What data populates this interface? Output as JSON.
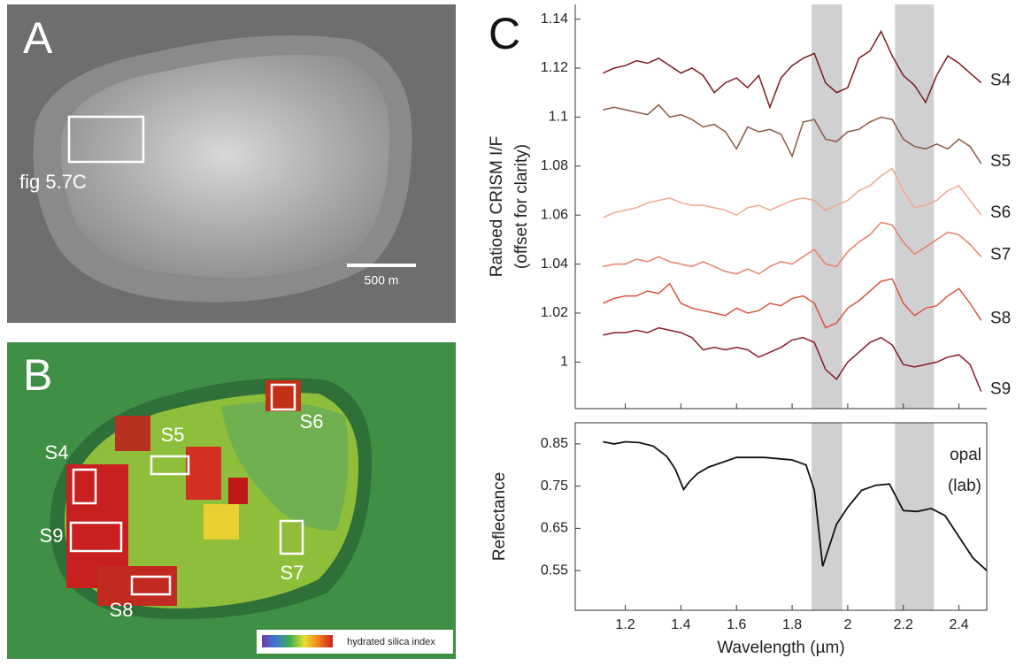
{
  "panels": {
    "a": {
      "label": "A",
      "box_label": "fig 5.7C",
      "scale_label": "500 m"
    },
    "b": {
      "label": "B",
      "sites": [
        "S4",
        "S5",
        "S6",
        "S7",
        "S8",
        "S9"
      ],
      "colorbar_label": "hydrated silica index"
    },
    "c": {
      "label": "C"
    }
  },
  "chart_data": [
    {
      "type": "line",
      "ylabel": [
        "Ratioed CRISM I/F",
        "(offset for clarity)"
      ],
      "xlim": [
        1.02,
        2.5
      ],
      "ylim": [
        0.981,
        1.146
      ],
      "xticks": [
        1.2,
        1.4,
        1.6,
        1.8,
        2,
        2.2,
        2.4
      ],
      "yticks": [
        1,
        1.02,
        1.04,
        1.06,
        1.08,
        1.1,
        1.12,
        1.14
      ],
      "shaded_ranges": [
        [
          1.87,
          1.98
        ],
        [
          2.17,
          2.31
        ]
      ],
      "x": [
        1.12,
        1.16,
        1.2,
        1.24,
        1.28,
        1.32,
        1.36,
        1.4,
        1.44,
        1.48,
        1.52,
        1.56,
        1.6,
        1.64,
        1.68,
        1.72,
        1.76,
        1.8,
        1.84,
        1.88,
        1.92,
        1.96,
        2,
        2.04,
        2.08,
        2.12,
        2.16,
        2.2,
        2.24,
        2.28,
        2.32,
        2.36,
        2.4,
        2.44,
        2.48
      ],
      "series": [
        {
          "name": "S4",
          "color": "#7a1a1f",
          "values": [
            1.118,
            1.12,
            1.121,
            1.123,
            1.122,
            1.124,
            1.121,
            1.118,
            1.12,
            1.117,
            1.11,
            1.114,
            1.116,
            1.112,
            1.117,
            1.104,
            1.116,
            1.121,
            1.124,
            1.126,
            1.114,
            1.11,
            1.112,
            1.124,
            1.127,
            1.135,
            1.125,
            1.117,
            1.113,
            1.106,
            1.117,
            1.125,
            1.122,
            1.118,
            1.114
          ]
        },
        {
          "name": "S5",
          "color": "#8a5a44",
          "values": [
            1.103,
            1.104,
            1.103,
            1.102,
            1.101,
            1.105,
            1.1,
            1.101,
            1.099,
            1.096,
            1.097,
            1.094,
            1.087,
            1.096,
            1.094,
            1.095,
            1.093,
            1.084,
            1.098,
            1.099,
            1.091,
            1.09,
            1.094,
            1.095,
            1.098,
            1.1,
            1.099,
            1.091,
            1.088,
            1.087,
            1.089,
            1.087,
            1.091,
            1.088,
            1.081
          ]
        },
        {
          "name": "S6",
          "color": "#f0a88e",
          "values": [
            1.059,
            1.061,
            1.062,
            1.063,
            1.065,
            1.066,
            1.067,
            1.065,
            1.064,
            1.064,
            1.063,
            1.062,
            1.06,
            1.063,
            1.064,
            1.062,
            1.064,
            1.066,
            1.067,
            1.066,
            1.062,
            1.064,
            1.066,
            1.07,
            1.072,
            1.076,
            1.079,
            1.07,
            1.063,
            1.064,
            1.066,
            1.07,
            1.072,
            1.066,
            1.06
          ]
        },
        {
          "name": "S7",
          "color": "#e8826a",
          "values": [
            1.039,
            1.04,
            1.04,
            1.042,
            1.041,
            1.043,
            1.041,
            1.04,
            1.039,
            1.041,
            1.039,
            1.037,
            1.036,
            1.038,
            1.036,
            1.039,
            1.041,
            1.04,
            1.043,
            1.046,
            1.04,
            1.039,
            1.045,
            1.049,
            1.052,
            1.057,
            1.056,
            1.049,
            1.044,
            1.047,
            1.05,
            1.053,
            1.052,
            1.048,
            1.043
          ]
        },
        {
          "name": "S8",
          "color": "#d9553f",
          "values": [
            1.024,
            1.026,
            1.027,
            1.027,
            1.029,
            1.028,
            1.032,
            1.024,
            1.022,
            1.021,
            1.02,
            1.019,
            1.022,
            1.02,
            1.021,
            1.024,
            1.023,
            1.026,
            1.027,
            1.024,
            1.014,
            1.016,
            1.022,
            1.025,
            1.029,
            1.033,
            1.034,
            1.024,
            1.019,
            1.022,
            1.023,
            1.027,
            1.03,
            1.024,
            1.017
          ]
        },
        {
          "name": "S9",
          "color": "#8b1a2a",
          "values": [
            1.011,
            1.012,
            1.012,
            1.013,
            1.012,
            1.014,
            1.013,
            1.012,
            1.01,
            1.005,
            1.006,
            1.005,
            1.006,
            1.005,
            1.002,
            1.004,
            1.006,
            1.009,
            1.01,
            1.008,
            0.997,
            0.993,
            1,
            1.004,
            1.008,
            1.01,
            1.007,
            0.999,
            0.998,
            0.999,
            1,
            1.002,
            1.003,
            0.999,
            0.988
          ]
        }
      ]
    },
    {
      "type": "line",
      "ylabel": [
        "Reflectance"
      ],
      "xlabel": "Wavelength (µm)",
      "annotation": [
        "opal",
        "(lab)"
      ],
      "xlim": [
        1.02,
        2.5
      ],
      "ylim": [
        0.456,
        0.9
      ],
      "xticks": [
        1.2,
        1.4,
        1.6,
        1.8,
        2,
        2.2,
        2.4
      ],
      "yticks": [
        0.55,
        0.65,
        0.75,
        0.85
      ],
      "shaded_ranges": [
        [
          1.87,
          1.98
        ],
        [
          2.17,
          2.31
        ]
      ],
      "x": [
        1.12,
        1.16,
        1.2,
        1.25,
        1.3,
        1.35,
        1.38,
        1.41,
        1.43,
        1.46,
        1.5,
        1.6,
        1.7,
        1.8,
        1.85,
        1.88,
        1.9,
        1.91,
        1.93,
        1.96,
        2,
        2.05,
        2.1,
        2.15,
        2.2,
        2.25,
        2.3,
        2.35,
        2.4,
        2.45,
        2.5
      ],
      "series": [
        {
          "color": "#111111",
          "values": [
            0.855,
            0.85,
            0.855,
            0.853,
            0.845,
            0.82,
            0.79,
            0.742,
            0.76,
            0.78,
            0.795,
            0.818,
            0.818,
            0.812,
            0.8,
            0.74,
            0.62,
            0.56,
            0.6,
            0.66,
            0.7,
            0.74,
            0.752,
            0.755,
            0.692,
            0.69,
            0.697,
            0.68,
            0.63,
            0.58,
            0.55
          ]
        }
      ]
    }
  ]
}
